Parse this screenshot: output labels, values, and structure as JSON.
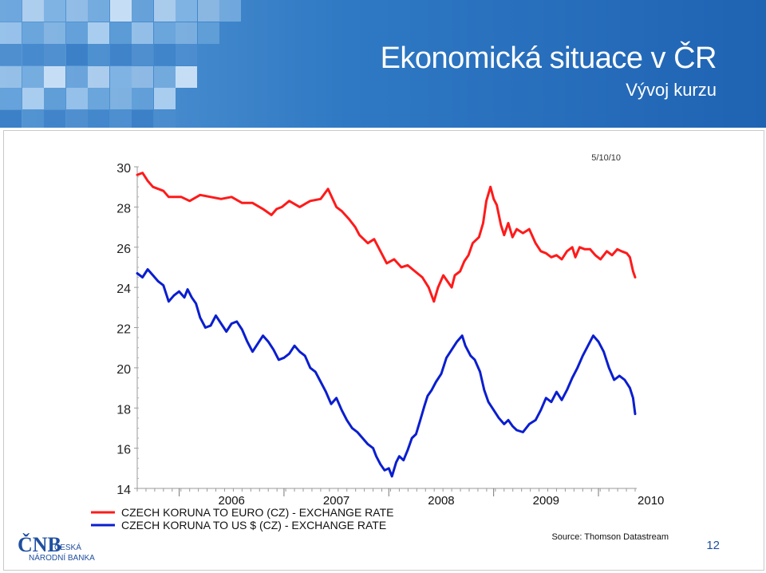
{
  "slide": {
    "title": "Ekonomická situace v ČR",
    "subtitle": "Vývoj kurzu",
    "page_number": "12",
    "logo_mark": "ČNB",
    "logo_line1": "ČESKÁ",
    "logo_line2": "NÁRODNÍ BANKA",
    "colors": {
      "header_blue": "#1f63b3",
      "header_light": "#5b9bd5",
      "eur_line": "#ff1a1a",
      "usd_line": "#0a1ecf"
    }
  },
  "chart_data": {
    "type": "line",
    "date_label": "5/10/10",
    "source": "Source: Thomson Datastream",
    "x_tick_labels": [
      "2006",
      "2007",
      "2008",
      "2009",
      "2010"
    ],
    "xlim": [
      2005.6,
      2010.35
    ],
    "ylim": [
      14,
      30
    ],
    "y_ticks": [
      14,
      16,
      18,
      20,
      22,
      24,
      26,
      28,
      30
    ],
    "grid": false,
    "legend_position": "bottom",
    "series": [
      {
        "name": "CZECH KORUNA TO EURO (CZ) - EXCHANGE RATE",
        "color": "#ff1a1a",
        "points": [
          [
            2005.6,
            29.6
          ],
          [
            2005.65,
            29.7
          ],
          [
            2005.7,
            29.3
          ],
          [
            2005.75,
            29.0
          ],
          [
            2005.8,
            28.9
          ],
          [
            2005.85,
            28.8
          ],
          [
            2005.9,
            28.5
          ],
          [
            2005.96,
            28.5
          ],
          [
            2006.02,
            28.5
          ],
          [
            2006.1,
            28.3
          ],
          [
            2006.2,
            28.6
          ],
          [
            2006.3,
            28.5
          ],
          [
            2006.4,
            28.4
          ],
          [
            2006.5,
            28.5
          ],
          [
            2006.6,
            28.2
          ],
          [
            2006.7,
            28.2
          ],
          [
            2006.8,
            27.9
          ],
          [
            2006.88,
            27.6
          ],
          [
            2006.93,
            27.9
          ],
          [
            2006.98,
            28.0
          ],
          [
            2007.05,
            28.3
          ],
          [
            2007.15,
            28.0
          ],
          [
            2007.25,
            28.3
          ],
          [
            2007.35,
            28.4
          ],
          [
            2007.42,
            28.9
          ],
          [
            2007.5,
            28.0
          ],
          [
            2007.55,
            27.8
          ],
          [
            2007.62,
            27.4
          ],
          [
            2007.68,
            27.0
          ],
          [
            2007.72,
            26.6
          ],
          [
            2007.8,
            26.2
          ],
          [
            2007.86,
            26.4
          ],
          [
            2007.92,
            25.8
          ],
          [
            2007.98,
            25.2
          ],
          [
            2008.05,
            25.4
          ],
          [
            2008.12,
            25.0
          ],
          [
            2008.18,
            25.1
          ],
          [
            2008.25,
            24.8
          ],
          [
            2008.32,
            24.5
          ],
          [
            2008.38,
            24.0
          ],
          [
            2008.43,
            23.3
          ],
          [
            2008.47,
            24.0
          ],
          [
            2008.52,
            24.6
          ],
          [
            2008.56,
            24.3
          ],
          [
            2008.6,
            24.0
          ],
          [
            2008.63,
            24.6
          ],
          [
            2008.68,
            24.8
          ],
          [
            2008.72,
            25.3
          ],
          [
            2008.76,
            25.6
          ],
          [
            2008.8,
            26.2
          ],
          [
            2008.86,
            26.5
          ],
          [
            2008.9,
            27.2
          ],
          [
            2008.93,
            28.3
          ],
          [
            2008.97,
            29.0
          ],
          [
            2009.0,
            28.4
          ],
          [
            2009.03,
            28.1
          ],
          [
            2009.07,
            27.1
          ],
          [
            2009.1,
            26.6
          ],
          [
            2009.14,
            27.2
          ],
          [
            2009.18,
            26.5
          ],
          [
            2009.22,
            26.9
          ],
          [
            2009.28,
            26.7
          ],
          [
            2009.34,
            26.9
          ],
          [
            2009.4,
            26.2
          ],
          [
            2009.45,
            25.8
          ],
          [
            2009.5,
            25.7
          ],
          [
            2009.55,
            25.5
          ],
          [
            2009.6,
            25.6
          ],
          [
            2009.65,
            25.4
          ],
          [
            2009.7,
            25.8
          ],
          [
            2009.75,
            26.0
          ],
          [
            2009.78,
            25.5
          ],
          [
            2009.82,
            26.0
          ],
          [
            2009.87,
            25.9
          ],
          [
            2009.92,
            25.9
          ],
          [
            2009.97,
            25.6
          ],
          [
            2010.02,
            25.4
          ],
          [
            2010.08,
            25.8
          ],
          [
            2010.13,
            25.6
          ],
          [
            2010.18,
            25.9
          ],
          [
            2010.22,
            25.8
          ],
          [
            2010.27,
            25.7
          ],
          [
            2010.3,
            25.5
          ],
          [
            2010.33,
            24.8
          ],
          [
            2010.35,
            24.5
          ]
        ]
      },
      {
        "name": "CZECH KORUNA TO US $ (CZ) - EXCHANGE RATE",
        "color": "#0a1ecf",
        "points": [
          [
            2005.6,
            24.7
          ],
          [
            2005.65,
            24.5
          ],
          [
            2005.7,
            24.9
          ],
          [
            2005.75,
            24.6
          ],
          [
            2005.8,
            24.3
          ],
          [
            2005.85,
            24.1
          ],
          [
            2005.9,
            23.3
          ],
          [
            2005.95,
            23.6
          ],
          [
            2006.0,
            23.8
          ],
          [
            2006.05,
            23.5
          ],
          [
            2006.08,
            23.9
          ],
          [
            2006.12,
            23.5
          ],
          [
            2006.16,
            23.2
          ],
          [
            2006.2,
            22.5
          ],
          [
            2006.25,
            22.0
          ],
          [
            2006.3,
            22.1
          ],
          [
            2006.35,
            22.6
          ],
          [
            2006.4,
            22.2
          ],
          [
            2006.45,
            21.8
          ],
          [
            2006.5,
            22.2
          ],
          [
            2006.55,
            22.3
          ],
          [
            2006.6,
            21.9
          ],
          [
            2006.65,
            21.3
          ],
          [
            2006.7,
            20.8
          ],
          [
            2006.75,
            21.2
          ],
          [
            2006.8,
            21.6
          ],
          [
            2006.85,
            21.3
          ],
          [
            2006.9,
            20.9
          ],
          [
            2006.95,
            20.4
          ],
          [
            2007.0,
            20.5
          ],
          [
            2007.05,
            20.7
          ],
          [
            2007.1,
            21.1
          ],
          [
            2007.15,
            20.8
          ],
          [
            2007.2,
            20.6
          ],
          [
            2007.25,
            20.0
          ],
          [
            2007.3,
            19.8
          ],
          [
            2007.35,
            19.3
          ],
          [
            2007.4,
            18.8
          ],
          [
            2007.45,
            18.2
          ],
          [
            2007.5,
            18.5
          ],
          [
            2007.55,
            17.9
          ],
          [
            2007.6,
            17.4
          ],
          [
            2007.65,
            17.0
          ],
          [
            2007.7,
            16.8
          ],
          [
            2007.75,
            16.5
          ],
          [
            2007.8,
            16.2
          ],
          [
            2007.85,
            16.0
          ],
          [
            2007.88,
            15.6
          ],
          [
            2007.92,
            15.2
          ],
          [
            2007.96,
            14.9
          ],
          [
            2008.0,
            15.0
          ],
          [
            2008.03,
            14.6
          ],
          [
            2008.07,
            15.3
          ],
          [
            2008.1,
            15.6
          ],
          [
            2008.14,
            15.4
          ],
          [
            2008.18,
            15.9
          ],
          [
            2008.22,
            16.5
          ],
          [
            2008.26,
            16.7
          ],
          [
            2008.3,
            17.4
          ],
          [
            2008.34,
            18.1
          ],
          [
            2008.37,
            18.6
          ],
          [
            2008.41,
            18.9
          ],
          [
            2008.45,
            19.3
          ],
          [
            2008.5,
            19.7
          ],
          [
            2008.55,
            20.5
          ],
          [
            2008.6,
            20.9
          ],
          [
            2008.65,
            21.3
          ],
          [
            2008.7,
            21.6
          ],
          [
            2008.73,
            21.1
          ],
          [
            2008.78,
            20.6
          ],
          [
            2008.82,
            20.4
          ],
          [
            2008.87,
            19.8
          ],
          [
            2008.91,
            18.9
          ],
          [
            2008.95,
            18.3
          ],
          [
            2009.0,
            17.9
          ],
          [
            2009.05,
            17.5
          ],
          [
            2009.1,
            17.2
          ],
          [
            2009.14,
            17.4
          ],
          [
            2009.18,
            17.1
          ],
          [
            2009.22,
            16.9
          ],
          [
            2009.28,
            16.8
          ],
          [
            2009.34,
            17.2
          ],
          [
            2009.4,
            17.4
          ],
          [
            2009.45,
            17.9
          ],
          [
            2009.5,
            18.5
          ],
          [
            2009.55,
            18.3
          ],
          [
            2009.6,
            18.8
          ],
          [
            2009.65,
            18.4
          ],
          [
            2009.7,
            18.9
          ],
          [
            2009.75,
            19.5
          ],
          [
            2009.8,
            20.0
          ],
          [
            2009.85,
            20.6
          ],
          [
            2009.9,
            21.1
          ],
          [
            2009.95,
            21.6
          ],
          [
            2010.0,
            21.3
          ],
          [
            2010.05,
            20.8
          ],
          [
            2010.1,
            20.0
          ],
          [
            2010.15,
            19.4
          ],
          [
            2010.2,
            19.6
          ],
          [
            2010.25,
            19.4
          ],
          [
            2010.3,
            19.0
          ],
          [
            2010.33,
            18.5
          ],
          [
            2010.35,
            17.7
          ]
        ]
      }
    ]
  }
}
